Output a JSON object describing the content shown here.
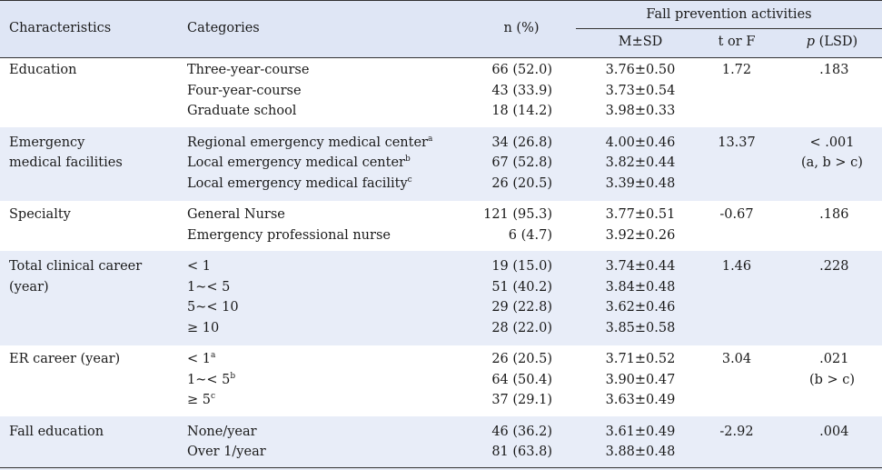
{
  "header": {
    "characteristics": "Characteristics",
    "categories": "Categories",
    "n_pct": "n (%)",
    "group": "Fall prevention activities",
    "msd": "M±SD",
    "torf": "t or F",
    "p_italic": "p",
    "p_rest": " (LSD)"
  },
  "groups": [
    {
      "label": [
        "Education"
      ],
      "shaded": false,
      "rows": [
        {
          "cat": "Three-year-course",
          "sup": "",
          "n": "66 (52.0)",
          "msd": "3.76±0.50"
        },
        {
          "cat": "Four-year-course",
          "sup": "",
          "n": "43 (33.9)",
          "msd": "3.73±0.54"
        },
        {
          "cat": "Graduate school",
          "sup": "",
          "n": "18 (14.2)",
          "msd": "3.98±0.33"
        }
      ],
      "stat": "1.72",
      "p": [
        " .183"
      ]
    },
    {
      "label": [
        "Emergency",
        " medical facilities"
      ],
      "shaded": true,
      "rows": [
        {
          "cat": "Regional emergency medical center",
          "sup": "a",
          "n": "34 (26.8)",
          "msd": "4.00±0.46"
        },
        {
          "cat": "Local emergency medical center",
          "sup": "b",
          "n": "67 (52.8)",
          "msd": "3.82±0.44"
        },
        {
          "cat": "Local emergency medical facility",
          "sup": "c",
          "n": "26 (20.5)",
          "msd": "3.39±0.48"
        }
      ],
      "stat": "13.37",
      "p": [
        "< .001",
        "(a, b > c)"
      ]
    },
    {
      "label": [
        "Specialty"
      ],
      "shaded": false,
      "rows": [
        {
          "cat": "General Nurse",
          "sup": "",
          "n": "121 (95.3)",
          "msd": "3.77±0.51"
        },
        {
          "cat": "Emergency professional nurse",
          "sup": "",
          "n": "6 (4.7)",
          "msd": "3.92±0.26"
        }
      ],
      "stat": "-0.67",
      "p": [
        " .186"
      ]
    },
    {
      "label": [
        "Total clinical career",
        "  (year)"
      ],
      "shaded": true,
      "rows": [
        {
          "cat": "< 1",
          "sup": "",
          "n": "19 (15.0)",
          "msd": "3.74±0.44"
        },
        {
          "cat": "1~< 5",
          "sup": "",
          "n": "51 (40.2)",
          "msd": "3.84±0.48"
        },
        {
          "cat": "5~< 10",
          "sup": "",
          "n": "29 (22.8)",
          "msd": "3.62±0.46"
        },
        {
          "cat": "≥ 10",
          "sup": "",
          "n": "28 (22.0)",
          "msd": "3.85±0.58"
        }
      ],
      "stat": "1.46",
      "p": [
        " .228"
      ]
    },
    {
      "label": [
        "ER career (year)"
      ],
      "shaded": false,
      "rows": [
        {
          "cat": "< 1",
          "sup": "a",
          "n": "26 (20.5)",
          "msd": "3.71±0.52"
        },
        {
          "cat": "1~< 5",
          "sup": "b",
          "n": "64 (50.4)",
          "msd": "3.90±0.47"
        },
        {
          "cat": "≥ 5",
          "sup": "c",
          "n": "37 (29.1)",
          "msd": "3.63±0.49"
        }
      ],
      "stat": "3.04",
      "p": [
        " .021",
        "(b > c)"
      ]
    },
    {
      "label": [
        "Fall education"
      ],
      "shaded": true,
      "rows": [
        {
          "cat": "None/year",
          "sup": "",
          "n": "46 (36.2)",
          "msd": "3.61±0.49"
        },
        {
          "cat": "Over 1/year",
          "sup": "",
          "n": "81 (63.8)",
          "msd": "3.88±0.48"
        }
      ],
      "stat": "-2.92",
      "p": [
        " .004"
      ]
    }
  ],
  "colors": {
    "header_band": "#dfe6f5",
    "row_band": "#e8edf8",
    "rule": "#333333"
  }
}
